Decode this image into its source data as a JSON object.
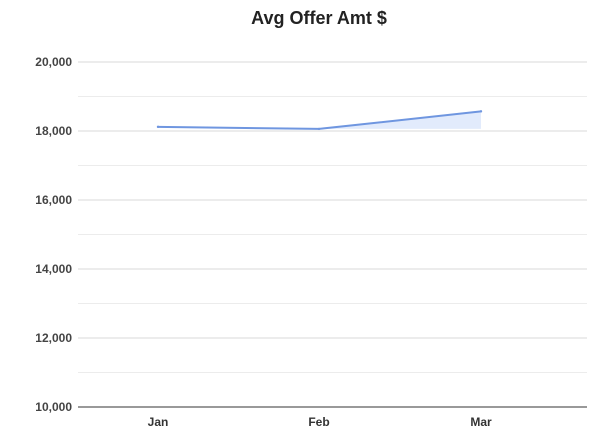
{
  "chart_data": {
    "type": "line",
    "title": "Avg Offer Amt $",
    "categories": [
      "Jan",
      "Feb",
      "Mar"
    ],
    "series": [
      {
        "values": [
          18120,
          18060,
          18570
        ]
      }
    ],
    "ylim": [
      10000,
      20000
    ],
    "yticks": [
      10000,
      12000,
      14000,
      16000,
      18000,
      20000
    ],
    "ytick_labels": [
      "10,000",
      "12,000",
      "14,000",
      "16,000",
      "18,000",
      "20,000"
    ],
    "grid": true,
    "legend": "none",
    "colors": {
      "line": "#6f96e0",
      "fill": "#dbe6fb"
    }
  }
}
